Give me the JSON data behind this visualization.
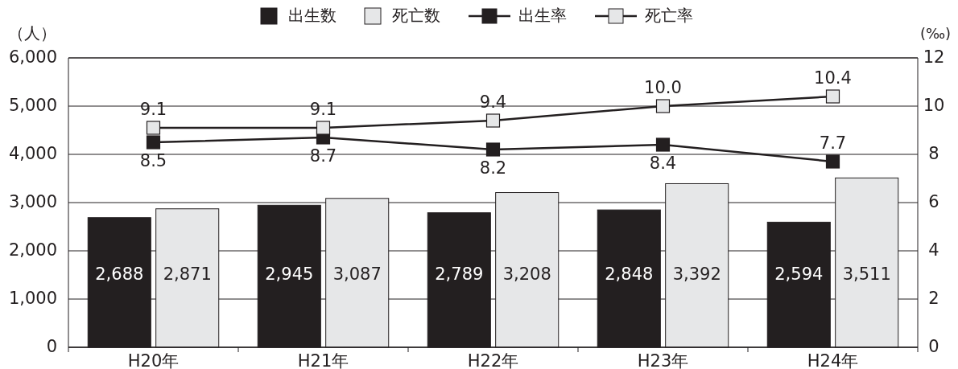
{
  "chart_data": {
    "type": "bar",
    "categories": [
      "H20年",
      "H21年",
      "H22年",
      "H23年",
      "H24年"
    ],
    "ylabel": "（人）",
    "y2label": "(‰)",
    "ylim": [
      0,
      6000
    ],
    "yticks": [
      0,
      {
        "value": 1000,
        "label": "1,000"
      },
      {
        "value": 2000,
        "label": "2,000"
      },
      {
        "value": 3000,
        "label": "3,000"
      },
      {
        "value": 4000,
        "label": "4,000"
      },
      {
        "value": 5000,
        "label": "5,000"
      },
      {
        "value": 6000,
        "label": "6,000"
      }
    ],
    "y2lim": [
      0,
      12
    ],
    "y2ticks": [
      0,
      2,
      4,
      6,
      8,
      10,
      12
    ],
    "grid": "y",
    "legend": "top",
    "marker": "square",
    "series": [
      {
        "name": "出生数",
        "color": "#231f20",
        "values": [
          2688,
          2945,
          2789,
          2848,
          2594
        ],
        "value_labels": [
          "2,688",
          "2,945",
          "2,789",
          "2,848",
          "2,594"
        ]
      },
      {
        "name": "死亡数",
        "color": "#e6e7e8",
        "values": [
          2871,
          3087,
          3208,
          3392,
          3511
        ],
        "value_labels": [
          "2,871",
          "3,087",
          "3,208",
          "3,392",
          "3,511"
        ]
      },
      {
        "name": "出生率",
        "type": "line",
        "axis": "y2",
        "color": "#231f20",
        "values": [
          8.5,
          8.7,
          8.2,
          8.4,
          7.7
        ],
        "value_labels": [
          "8.5",
          "8.7",
          "8.2",
          "8.4",
          "7.7"
        ]
      },
      {
        "name": "死亡率",
        "type": "line",
        "axis": "y2",
        "color": "#e6e7e8",
        "values": [
          9.1,
          9.1,
          9.4,
          10.0,
          10.4
        ],
        "value_labels": [
          "9.1",
          "9.1",
          "9.4",
          "10.0",
          "10.4"
        ]
      }
    ]
  }
}
